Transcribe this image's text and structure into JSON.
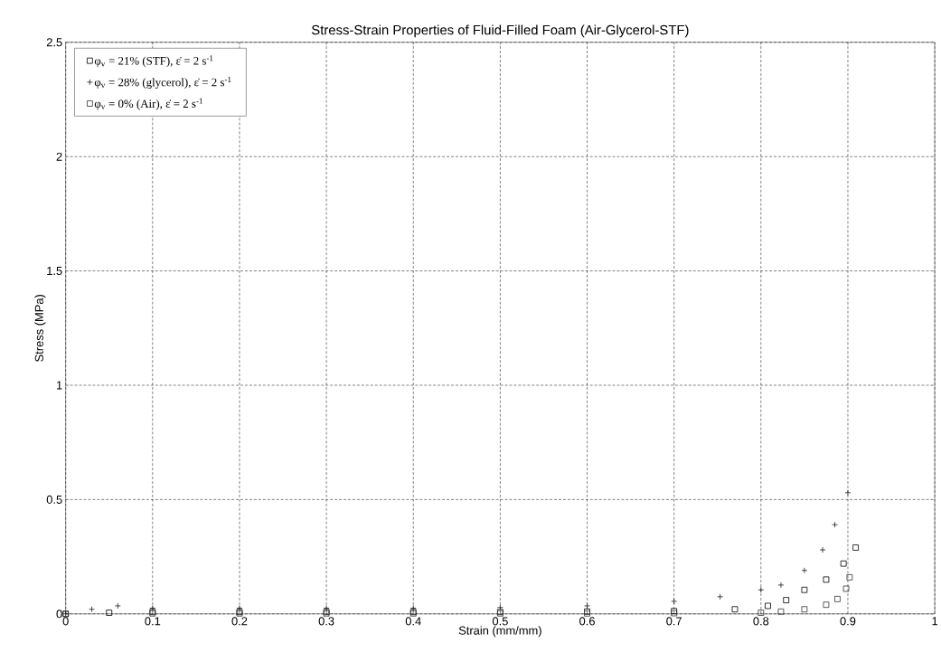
{
  "chart_data": {
    "type": "scatter",
    "title": "Stress-Strain Properties of Fluid-Filled Foam (Air-Glycerol-STF)",
    "xlabel": "Strain (mm/mm)",
    "ylabel": "Stress (MPa)",
    "xlim": [
      0,
      1
    ],
    "ylim": [
      0,
      2.5
    ],
    "xticks": [
      0,
      0.1,
      0.2,
      0.3,
      0.4,
      0.5,
      0.6,
      0.7,
      0.8,
      0.9,
      1
    ],
    "yticks": [
      0,
      0.5,
      1,
      1.5,
      2,
      2.5
    ],
    "grid": true,
    "legend": "top left",
    "series": [
      {
        "name": "φ$_{v}$ = 21% (STF),   ε̇ = 2 s$^{-1}$",
        "color": "#000000",
        "marker": "square",
        "x": [
          0,
          0.05,
          0.1,
          0.2,
          0.3,
          0.4,
          0.5,
          0.6,
          0.7,
          0.77,
          0.808,
          0.829,
          0.85,
          0.875,
          0.895,
          0.909
        ],
        "values": [
          0,
          0.005,
          0.008,
          0.008,
          0.008,
          0.008,
          0.008,
          0.01,
          0.012,
          0.02,
          0.035,
          0.06,
          0.105,
          0.15,
          0.22,
          0.29
        ]
      },
      {
        "name": "φ$_{v}$ = 28% (glycerol), ε̇ = 2 s$^{-1}$",
        "color": "#1a1a1a",
        "marker": "cross",
        "x": [
          0,
          0.03,
          0.06,
          0.1,
          0.2,
          0.3,
          0.4,
          0.5,
          0.6,
          0.7,
          0.753,
          0.8,
          0.823,
          0.85,
          0.871,
          0.885,
          0.9
        ],
        "values": [
          0,
          0.02,
          0.035,
          0.025,
          0.025,
          0.025,
          0.025,
          0.028,
          0.035,
          0.055,
          0.075,
          0.105,
          0.126,
          0.19,
          0.28,
          0.39,
          0.53
        ]
      },
      {
        "name": "φ$_{v}$ = 0% (Air),   ε̇ = 2 s$^{-1}$",
        "color": "#333333",
        "marker": "square",
        "x": [
          0,
          0.1,
          0.2,
          0.3,
          0.4,
          0.5,
          0.6,
          0.7,
          0.8,
          0.823,
          0.85,
          0.875,
          0.888,
          0.898,
          0.902
        ],
        "values": [
          0,
          0.002,
          0.002,
          0.002,
          0.002,
          0.002,
          0.002,
          0.003,
          0.005,
          0.01,
          0.02,
          0.04,
          0.065,
          0.11,
          0.16
        ]
      }
    ]
  }
}
